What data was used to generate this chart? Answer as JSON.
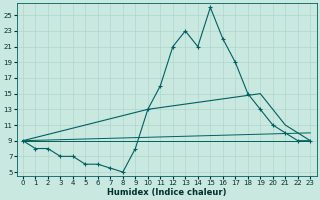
{
  "xlabel": "Humidex (Indice chaleur)",
  "bg_color": "#c8e8e0",
  "line_color": "#006060",
  "grid_color": "#b0d4cc",
  "xlim": [
    -0.5,
    23.5
  ],
  "ylim": [
    4.5,
    26.5
  ],
  "xticks": [
    0,
    1,
    2,
    3,
    4,
    5,
    6,
    7,
    8,
    9,
    10,
    11,
    12,
    13,
    14,
    15,
    16,
    17,
    18,
    19,
    20,
    21,
    22,
    23
  ],
  "yticks": [
    5,
    7,
    9,
    11,
    13,
    15,
    17,
    19,
    21,
    23,
    25
  ],
  "line1_x": [
    0,
    1,
    2,
    3,
    4,
    5,
    6,
    7,
    8,
    9,
    10,
    11,
    12,
    13,
    14,
    15,
    16,
    17,
    18,
    19,
    20,
    21,
    22,
    23
  ],
  "line1_y": [
    9,
    8,
    8,
    7,
    7,
    6,
    6,
    5.5,
    5,
    8,
    13,
    16,
    21,
    23,
    21,
    26,
    22,
    19,
    15,
    13,
    11,
    10,
    9,
    9
  ],
  "line2_x": [
    0,
    10,
    19,
    21,
    23
  ],
  "line2_y": [
    9,
    13,
    15,
    11,
    9
  ],
  "line3_x": [
    0,
    23
  ],
  "line3_y": [
    9,
    10
  ],
  "line4_x": [
    0,
    23
  ],
  "line4_y": [
    9,
    9
  ]
}
